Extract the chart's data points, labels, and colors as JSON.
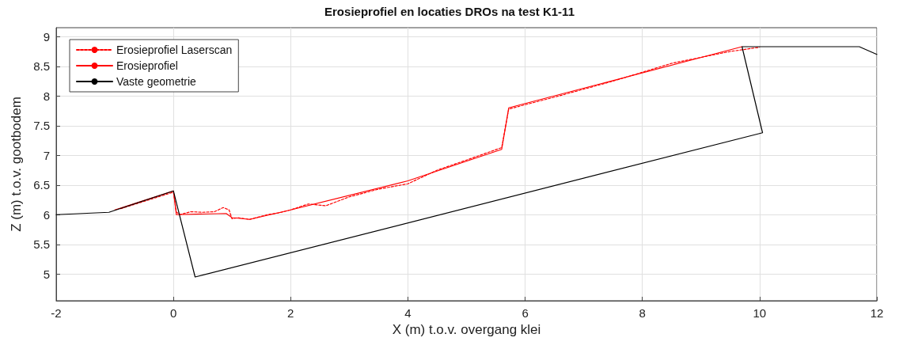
{
  "chart_data": {
    "type": "line",
    "title": "Erosieprofiel en locaties DROs na test K1-11",
    "xlabel": "X (m) t.o.v. overgang klei",
    "ylabel": "Z (m) t.o.v. gootbodem",
    "xlim": [
      -2,
      12
    ],
    "xticks": [
      -2,
      0,
      2,
      4,
      6,
      8,
      10,
      12
    ],
    "ylim": [
      4.55,
      9.15
    ],
    "yticks": [
      5,
      5.5,
      6,
      6.5,
      7,
      7.5,
      8,
      8.5,
      9
    ],
    "grid": true,
    "legend": "top left",
    "marker": "none",
    "series": [
      {
        "name": "Erosieprofiel Laserscan",
        "color": "#ff0000",
        "line_style": "dashed",
        "x": [
          -0.9,
          0,
          0.05,
          0.1,
          0.3,
          0.5,
          0.7,
          0.85,
          0.95,
          1.0,
          1.1,
          1.3,
          1.6,
          1.8,
          2.0,
          2.3,
          2.6,
          3.0,
          3.5,
          4.0,
          4.5,
          5.0,
          5.6,
          5.72,
          6.5,
          7.5,
          8.5,
          9.0,
          9.5,
          10.0
        ],
        "values": [
          6.1,
          6.38,
          6.05,
          6.0,
          6.05,
          6.04,
          6.05,
          6.12,
          6.08,
          5.93,
          5.95,
          5.92,
          6.0,
          6.03,
          6.08,
          6.18,
          6.15,
          6.3,
          6.43,
          6.52,
          6.75,
          6.92,
          7.13,
          7.78,
          7.98,
          8.25,
          8.55,
          8.65,
          8.75,
          8.82
        ]
      },
      {
        "name": "Erosieprofiel",
        "color": "#ff0000",
        "line_style": "solid",
        "x": [
          -1.0,
          0,
          0.05,
          0.9,
          1.0,
          1.3,
          2,
          4,
          5.6,
          5.72,
          9.7
        ],
        "values": [
          6.08,
          6.4,
          6.0,
          6.02,
          5.95,
          5.92,
          6.08,
          6.57,
          7.1,
          7.8,
          8.83
        ]
      },
      {
        "name": "Vaste geometrie",
        "color": "#000000",
        "line_style": "solid",
        "x": [
          -2,
          -1.1,
          0,
          0.37,
          10.05,
          9.7,
          11.7,
          12
        ],
        "values": [
          6.0,
          6.04,
          6.4,
          4.95,
          7.38,
          8.83,
          8.83,
          8.7
        ]
      }
    ]
  }
}
